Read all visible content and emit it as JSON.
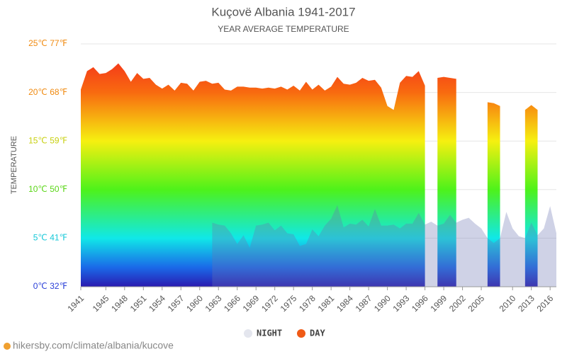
{
  "chart_data": {
    "type": "area",
    "title": "Kuçovë Albania 1941-2017",
    "subtitle": "YEAR AVERAGE TEMPERATURE",
    "y_label": "TEMPERATURE",
    "source": "hikersby.com/climate/albania/kucove",
    "x": [
      1941,
      1942,
      1943,
      1944,
      1945,
      1946,
      1947,
      1948,
      1949,
      1950,
      1951,
      1952,
      1953,
      1954,
      1955,
      1956,
      1957,
      1958,
      1959,
      1960,
      1961,
      1962,
      1963,
      1964,
      1965,
      1966,
      1967,
      1968,
      1969,
      1970,
      1971,
      1972,
      1973,
      1974,
      1975,
      1976,
      1977,
      1978,
      1979,
      1980,
      1981,
      1982,
      1983,
      1984,
      1985,
      1986,
      1987,
      1988,
      1989,
      1990,
      1991,
      1992,
      1993,
      1994,
      1995,
      1996,
      1997,
      1998,
      1999,
      2000,
      2001,
      2002,
      2003,
      2004,
      2005,
      2006,
      2007,
      2008,
      2009,
      2010,
      2011,
      2012,
      2013,
      2014,
      2015,
      2016,
      2017
    ],
    "series": [
      {
        "name": "NIGHT",
        "color": "#e4e6ee",
        "values": [
          null,
          null,
          null,
          null,
          null,
          null,
          null,
          null,
          null,
          null,
          null,
          null,
          null,
          null,
          null,
          null,
          null,
          null,
          null,
          null,
          null,
          6.6,
          6.4,
          6.3,
          5.5,
          4.4,
          5.3,
          4.0,
          6.3,
          6.4,
          6.6,
          5.8,
          6.3,
          5.5,
          5.4,
          4.2,
          4.4,
          5.9,
          5.2,
          6.3,
          7.0,
          8.4,
          6.1,
          6.5,
          6.4,
          6.9,
          6.2,
          8.0,
          6.3,
          6.3,
          6.4,
          6.0,
          6.5,
          6.5,
          7.6,
          6.4,
          6.7,
          6.3,
          6.5,
          7.4,
          6.6,
          6.9,
          7.1,
          6.5,
          6.0,
          5.0,
          4.5,
          5.0,
          7.7,
          6.0,
          5.2,
          5.0,
          6.6,
          5.3,
          6.0,
          8.3,
          5.5
        ]
      },
      {
        "name": "DAY",
        "color": "#f05a16",
        "values": [
          20.3,
          22.2,
          22.6,
          21.9,
          22.0,
          22.4,
          23.0,
          22.2,
          21.1,
          22.0,
          21.4,
          21.5,
          20.8,
          20.4,
          20.8,
          20.2,
          21.0,
          20.9,
          20.2,
          21.1,
          21.2,
          20.9,
          21.0,
          20.3,
          20.2,
          20.6,
          20.6,
          20.5,
          20.5,
          20.4,
          20.5,
          20.4,
          20.6,
          20.3,
          20.7,
          20.2,
          21.1,
          20.3,
          20.8,
          20.2,
          20.6,
          21.6,
          20.9,
          20.8,
          21.0,
          21.5,
          21.2,
          21.3,
          20.5,
          18.6,
          18.2,
          21.0,
          21.7,
          21.6,
          22.2,
          20.7,
          null,
          21.5,
          21.6,
          21.5,
          21.4,
          null,
          null,
          null,
          null,
          19.0,
          18.9,
          18.6,
          null,
          null,
          null,
          18.2,
          18.7,
          18.2,
          null,
          null,
          null
        ]
      }
    ],
    "xlim": [
      1941,
      2017
    ],
    "xticks": [
      1941,
      1945,
      1948,
      1951,
      1954,
      1957,
      1960,
      1963,
      1966,
      1969,
      1972,
      1975,
      1978,
      1981,
      1984,
      1987,
      1990,
      1993,
      1996,
      1999,
      2002,
      2005,
      2010,
      2013,
      2016
    ],
    "ylim": [
      0,
      25
    ],
    "yticks": [
      {
        "value": 0,
        "label": "0℃ 32℉"
      },
      {
        "value": 5,
        "label": "5℃ 41℉"
      },
      {
        "value": 10,
        "label": "10℃ 50℉"
      },
      {
        "value": 15,
        "label": "15℃ 59℉"
      },
      {
        "value": 20,
        "label": "20℃ 68℉"
      },
      {
        "value": 25,
        "label": "25℃ 77℉"
      }
    ],
    "ytick_colors": [
      "#2a3fd8",
      "#16c8d8",
      "#5ad616",
      "#c8d010",
      "#f08a10",
      "#f08a10"
    ],
    "grid": true
  }
}
